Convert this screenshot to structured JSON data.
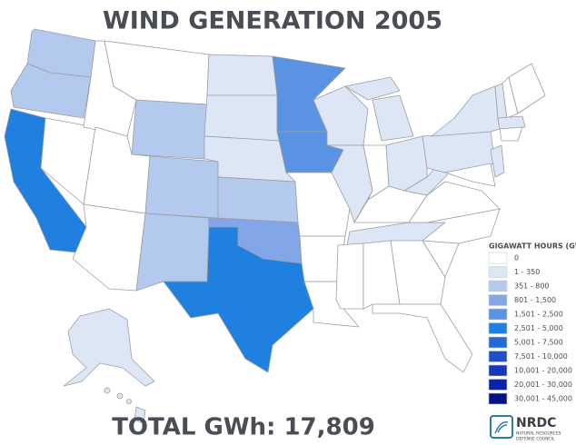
{
  "title": "WIND GENERATION 2005",
  "legend": {
    "title": "GIGAWATT HOURS (GWh)",
    "items": [
      {
        "label": "0",
        "color": "#ffffff"
      },
      {
        "label": "1 - 350",
        "color": "#dde6f5"
      },
      {
        "label": "351 - 800",
        "color": "#b4c9ee"
      },
      {
        "label": "801 - 1,500",
        "color": "#82a6e8"
      },
      {
        "label": "1,501 - 2,500",
        "color": "#5b93e4"
      },
      {
        "label": "2,501 - 5,000",
        "color": "#2080e0"
      },
      {
        "label": "5,001 - 7,500",
        "color": "#2468d6"
      },
      {
        "label": "7,501 - 10,000",
        "color": "#1d50c8"
      },
      {
        "label": "10,001 - 20,000",
        "color": "#1438b8"
      },
      {
        "label": "20,001 - 30,000",
        "color": "#0c23a3"
      },
      {
        "label": "30,001 - 45,000",
        "color": "#061089"
      }
    ]
  },
  "total": "TOTAL GWh: 17,809",
  "logo": {
    "name": "NRDC",
    "subtitle": [
      "NATURAL RESOURCES",
      "DEFENSE COUNCIL"
    ]
  }
}
